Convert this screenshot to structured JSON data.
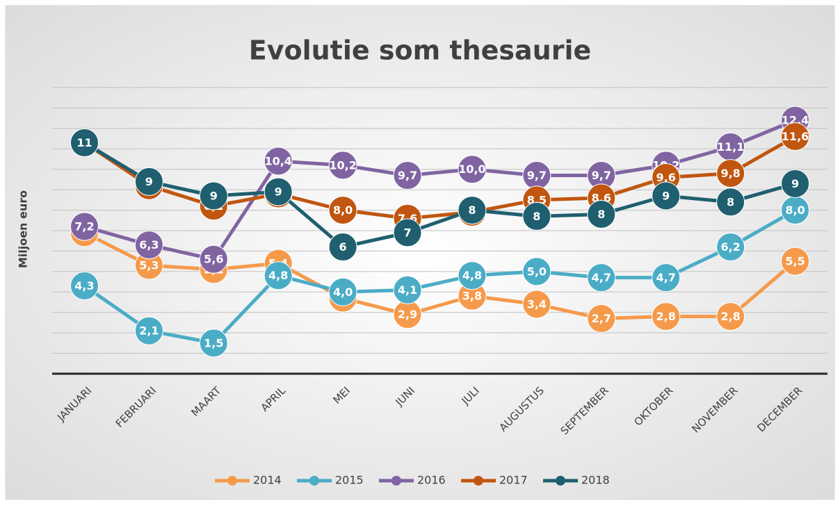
{
  "chart_data": {
    "type": "line",
    "title": "Evolutie som thesaurie",
    "y_label": "Miljoen euro",
    "categories": [
      "JANUARI",
      "FEBRUARI",
      "MAART",
      "APRIL",
      "MEI",
      "JUNI",
      "JULI",
      "AUGUSTUS",
      "SEPTEMBER",
      "OKTOBER",
      "NOVEMBER",
      "DECEMBER"
    ],
    "ylim": [
      0,
      14
    ],
    "yticks": [
      0,
      1,
      2,
      3,
      4,
      5,
      6,
      7,
      8,
      9,
      10,
      11,
      12,
      13,
      14
    ],
    "grid": true,
    "legend": "bottom",
    "series": [
      {
        "name": "2014",
        "color": "#f59a4b",
        "values": [
          6.9,
          5.3,
          5.1,
          5.4,
          3.7,
          2.9,
          3.8,
          3.4,
          2.7,
          2.8,
          2.8,
          5.5
        ],
        "value_labels": [
          "6,9",
          "5,3",
          "5,1",
          "5,4",
          "3,7",
          "2,9",
          "3,8",
          "3,4",
          "2,7",
          "2,8",
          "2,8",
          "5,5"
        ]
      },
      {
        "name": "2015",
        "color": "#4bacc6",
        "values": [
          4.3,
          2.1,
          1.5,
          4.8,
          4.0,
          4.1,
          4.8,
          5.0,
          4.7,
          4.7,
          6.2,
          8.0
        ],
        "value_labels": [
          "4,3",
          "2,1",
          "1,5",
          "4,8",
          "4,0",
          "4,1",
          "4,8",
          "5,0",
          "4,7",
          "4,7",
          "6,2",
          "8,0"
        ]
      },
      {
        "name": "2016",
        "color": "#8064a2",
        "values": [
          7.2,
          6.3,
          5.6,
          10.4,
          10.2,
          9.7,
          10.0,
          9.7,
          9.7,
          10.2,
          11.1,
          12.4
        ],
        "value_labels": [
          "7,2",
          "6,3",
          "5,6",
          "10,4",
          "10,2",
          "9,7",
          "10,0",
          "9,7",
          "9,7",
          "10,2",
          "11,1",
          "12,4"
        ]
      },
      {
        "name": "2017",
        "color": "#c0560f",
        "values": [
          11.3,
          9.2,
          8.2,
          8.8,
          8.0,
          7.6,
          7.9,
          8.5,
          8.6,
          9.6,
          9.8,
          11.6
        ],
        "value_labels": [
          "11,3",
          "9,2",
          "8,2",
          "8,8",
          "8,0",
          "7,6",
          "7,9",
          "8,5",
          "8,6",
          "9,6",
          "9,8",
          "11,6"
        ]
      },
      {
        "name": "2018",
        "color": "#1f5f6f",
        "values": [
          11.3,
          9.4,
          8.7,
          8.9,
          6.2,
          6.9,
          8.0,
          7.7,
          7.8,
          8.7,
          8.4,
          9.3
        ],
        "value_labels": [
          "11",
          "9",
          "9",
          "9",
          "6",
          "7",
          "8",
          "8",
          "8",
          "9",
          "8",
          "9"
        ]
      }
    ]
  }
}
